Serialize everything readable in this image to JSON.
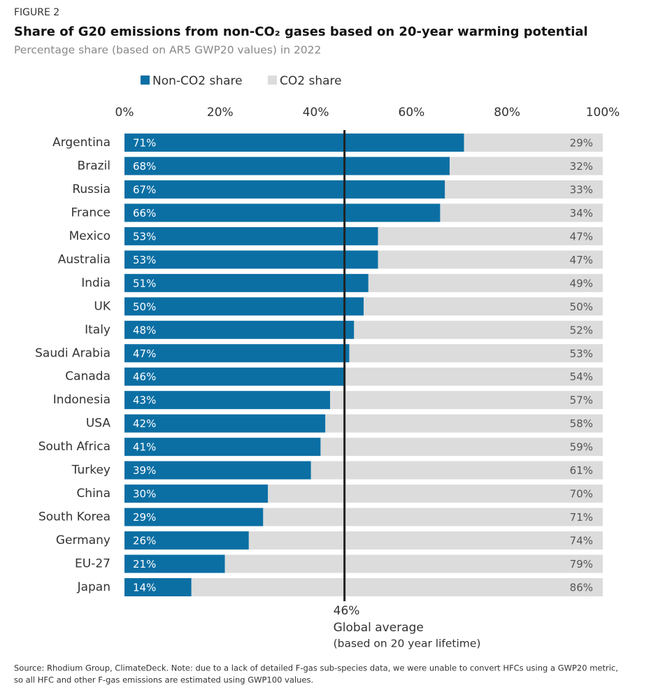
{
  "chart_data": {
    "type": "stacked_bar",
    "figure_label": "FIGURE 2",
    "title": "Share of G20 emissions from non-CO₂ gases based on 20-year warming potential",
    "subtitle": "Percentage share (based on AR5 GWP20 values) in 2022",
    "categories": [
      "Argentina",
      "Brazil",
      "Russia",
      "France",
      "Mexico",
      "Australia",
      "India",
      "UK",
      "Italy",
      "Saudi Arabia",
      "Canada",
      "Indonesia",
      "USA",
      "South Africa",
      "Turkey",
      "China",
      "South Korea",
      "Germany",
      "EU-27",
      "Japan"
    ],
    "series": [
      {
        "name": "Non-CO2 share",
        "color": "#0b6fa4",
        "values": [
          71,
          68,
          67,
          66,
          53,
          53,
          51,
          50,
          48,
          47,
          46,
          43,
          42,
          41,
          39,
          30,
          29,
          26,
          21,
          14
        ],
        "value_labels": [
          "71%",
          "68%",
          "67%",
          "66%",
          "53%",
          "53%",
          "51%",
          "50%",
          "48%",
          "47%",
          "46%",
          "43%",
          "42%",
          "41%",
          "39%",
          "30%",
          "29%",
          "26%",
          "21%",
          "14%"
        ]
      },
      {
        "name": "CO2 share",
        "color": "#dcdcdc",
        "values": [
          29,
          32,
          33,
          34,
          47,
          47,
          49,
          50,
          52,
          53,
          54,
          57,
          58,
          59,
          61,
          70,
          71,
          74,
          79,
          86
        ],
        "value_labels": [
          "29%",
          "32%",
          "33%",
          "34%",
          "47%",
          "47%",
          "49%",
          "50%",
          "52%",
          "53%",
          "54%",
          "57%",
          "58%",
          "59%",
          "61%",
          "70%",
          "71%",
          "74%",
          "79%",
          "86%"
        ]
      }
    ],
    "xlim": [
      0,
      100
    ],
    "xticks": [
      {
        "value": 0,
        "label": "0%"
      },
      {
        "value": 20,
        "label": "20%"
      },
      {
        "value": 40,
        "label": "40%"
      },
      {
        "value": 60,
        "label": "60%"
      },
      {
        "value": 80,
        "label": "80%"
      },
      {
        "value": 100,
        "label": "100%"
      }
    ],
    "reference_line": {
      "value": 46,
      "label": "46%",
      "text": "Global average",
      "note": "(based on 20 year lifetime)"
    },
    "source": [
      "Source: Rhodium Group, ClimateDeck. Note: due to a lack of detailed F-gas sub-species data, we were unable to convert HFCs using a GWP20 metric,",
      "so all HFC and other F-gas emissions are estimated using GWP100 values."
    ]
  }
}
